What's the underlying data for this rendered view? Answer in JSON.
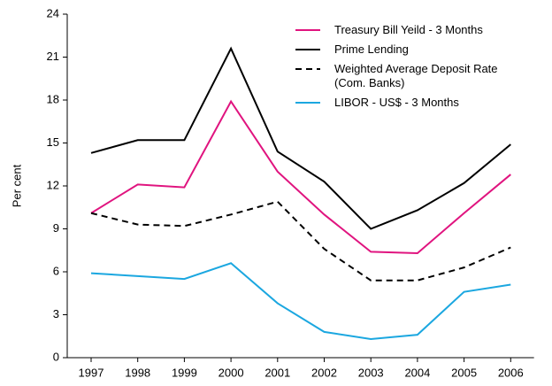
{
  "chart_data": {
    "type": "line",
    "y_label": "Per cent",
    "categories": [
      "1997",
      "1998",
      "1999",
      "2000",
      "2001",
      "2002",
      "2003",
      "2004",
      "2005",
      "2006"
    ],
    "series": [
      {
        "name": "Treasury Bill Yeild - 3 Months",
        "color": "#e0147f",
        "dash": false,
        "values": [
          10.1,
          12.1,
          11.9,
          17.9,
          13.0,
          10.0,
          7.4,
          7.3,
          10.1,
          12.8
        ]
      },
      {
        "name": "Prime Lending",
        "color": "#000000",
        "dash": false,
        "values": [
          14.3,
          15.2,
          15.2,
          21.6,
          14.4,
          12.3,
          9.0,
          10.3,
          12.2,
          14.9
        ]
      },
      {
        "name": "Weighted Average Deposit Rate\n(Com. Banks)",
        "color": "#000000",
        "dash": true,
        "values": [
          10.1,
          9.3,
          9.2,
          10.0,
          10.9,
          7.6,
          5.4,
          5.4,
          6.3,
          7.7
        ]
      },
      {
        "name": "LIBOR - US$ - 3 Months",
        "color": "#1ba7e0",
        "dash": false,
        "values": [
          5.9,
          5.7,
          5.5,
          6.6,
          3.8,
          1.8,
          1.3,
          1.6,
          4.6,
          5.1
        ]
      }
    ],
    "ylim": [
      0,
      24
    ],
    "yticks": [
      0,
      3,
      6,
      9,
      12,
      15,
      18,
      21,
      24
    ],
    "legend": "upper right"
  }
}
